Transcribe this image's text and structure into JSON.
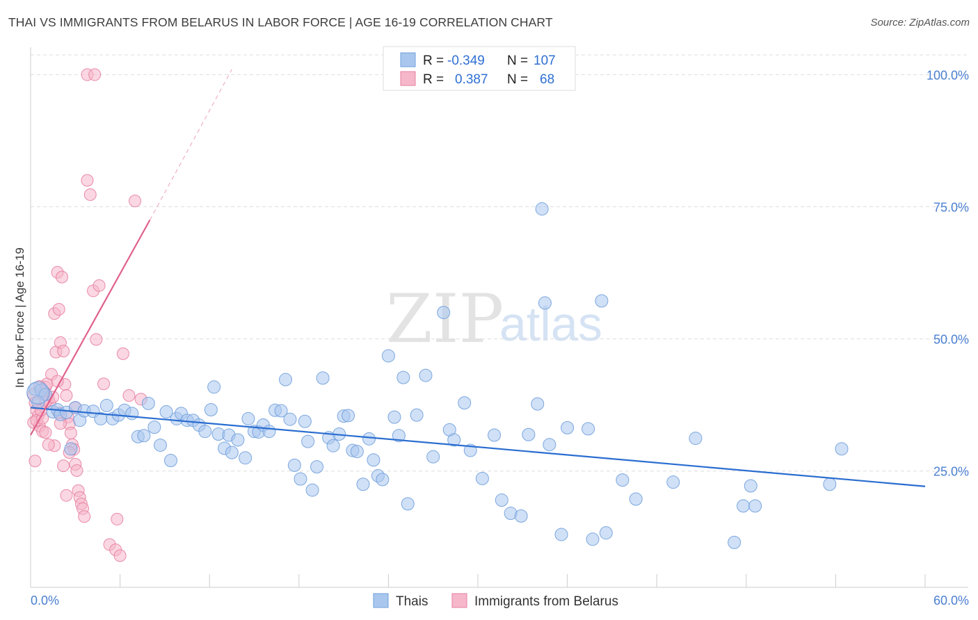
{
  "title": "THAI VS IMMIGRANTS FROM BELARUS IN LABOR FORCE | AGE 16-19 CORRELATION CHART",
  "source": "Source: ZipAtlas.com",
  "watermark": {
    "zip": "ZIP",
    "atlas": "atlas"
  },
  "colors": {
    "thai_fill": "#a9c7ee",
    "thai_stroke": "#6f9fdc",
    "thai_line": "#2a6dd0",
    "bel_fill": "#f6b7cb",
    "bel_stroke": "#e77fa1",
    "bel_line": "#e0608c",
    "axis_label": "#4a7fd0",
    "grid": "#dddddd"
  },
  "legend": {
    "rows": [
      {
        "r_label": "R =",
        "r_value": "-0.349",
        "n_label": "N =",
        "n_value": "107"
      },
      {
        "r_label": "R =",
        "r_value": "0.387",
        "n_label": "N =",
        "n_value": "68"
      }
    ]
  },
  "bottom_legend": [
    "Thais",
    "Immigrants from Belarus"
  ],
  "chart_data": {
    "type": "scatter",
    "title": "THAI VS IMMIGRANTS FROM BELARUS IN LABOR FORCE | AGE 16-19 CORRELATION CHART",
    "xlabel": "",
    "ylabel": "In Labor Force | Age 16-19",
    "xlim": [
      0,
      60
    ],
    "ylim": [
      3,
      104
    ],
    "x_tick_labels": [
      "0.0%",
      "60.0%"
    ],
    "y_ticks": [
      25,
      50,
      75,
      100
    ],
    "y_tick_labels": [
      "25.0%",
      "50.0%",
      "75.0%",
      "100.0%"
    ],
    "grid": true,
    "legend_position": "top-center",
    "series": [
      {
        "name": "Thais",
        "r": -0.349,
        "n": 107,
        "trend": {
          "x": [
            0,
            60
          ],
          "y": [
            37.0,
            22.1
          ]
        },
        "points": [
          [
            0.3,
            40.5
          ],
          [
            0.7,
            40.3
          ],
          [
            1.0,
            39.5
          ],
          [
            0.5,
            38.0
          ],
          [
            1.5,
            36.2
          ],
          [
            1.8,
            36.6
          ],
          [
            2.0,
            35.7
          ],
          [
            2.4,
            36.1
          ],
          [
            2.7,
            29.2
          ],
          [
            3.0,
            37.0
          ],
          [
            3.3,
            34.6
          ],
          [
            3.6,
            36.4
          ],
          [
            4.2,
            36.3
          ],
          [
            4.7,
            34.9
          ],
          [
            5.1,
            37.4
          ],
          [
            5.5,
            34.9
          ],
          [
            5.9,
            35.6
          ],
          [
            6.3,
            36.5
          ],
          [
            6.8,
            35.9
          ],
          [
            7.2,
            31.5
          ],
          [
            7.6,
            31.7
          ],
          [
            7.9,
            37.8
          ],
          [
            8.3,
            33.3
          ],
          [
            8.7,
            29.9
          ],
          [
            9.1,
            36.2
          ],
          [
            9.4,
            27.0
          ],
          [
            9.8,
            34.9
          ],
          [
            10.1,
            35.9
          ],
          [
            10.5,
            34.6
          ],
          [
            10.9,
            34.6
          ],
          [
            11.3,
            33.7
          ],
          [
            11.7,
            32.5
          ],
          [
            12.1,
            36.6
          ],
          [
            12.3,
            40.9
          ],
          [
            12.6,
            32.0
          ],
          [
            13.0,
            29.3
          ],
          [
            13.3,
            31.8
          ],
          [
            13.5,
            28.5
          ],
          [
            13.9,
            30.9
          ],
          [
            14.4,
            27.5
          ],
          [
            14.6,
            34.9
          ],
          [
            15.0,
            32.5
          ],
          [
            15.3,
            32.4
          ],
          [
            15.6,
            33.7
          ],
          [
            16.0,
            32.5
          ],
          [
            16.4,
            36.5
          ],
          [
            16.8,
            36.4
          ],
          [
            17.1,
            42.3
          ],
          [
            17.4,
            34.8
          ],
          [
            17.7,
            26.1
          ],
          [
            18.1,
            23.5
          ],
          [
            18.4,
            34.4
          ],
          [
            18.6,
            30.6
          ],
          [
            18.9,
            21.4
          ],
          [
            19.2,
            25.8
          ],
          [
            19.6,
            42.6
          ],
          [
            20.0,
            31.3
          ],
          [
            20.3,
            29.8
          ],
          [
            20.7,
            32.0
          ],
          [
            21.0,
            35.4
          ],
          [
            21.3,
            35.5
          ],
          [
            21.6,
            28.9
          ],
          [
            21.9,
            28.7
          ],
          [
            22.3,
            22.5
          ],
          [
            22.7,
            31.1
          ],
          [
            23.0,
            27.1
          ],
          [
            23.3,
            24.1
          ],
          [
            23.6,
            23.4
          ],
          [
            24.0,
            46.8
          ],
          [
            24.4,
            35.2
          ],
          [
            24.7,
            31.7
          ],
          [
            25.0,
            42.7
          ],
          [
            25.3,
            18.8
          ],
          [
            25.9,
            35.6
          ],
          [
            26.5,
            43.1
          ],
          [
            27.0,
            27.7
          ],
          [
            27.7,
            55.0
          ],
          [
            28.1,
            32.8
          ],
          [
            28.4,
            30.9
          ],
          [
            29.1,
            37.9
          ],
          [
            29.5,
            28.9
          ],
          [
            30.3,
            23.6
          ],
          [
            31.1,
            31.8
          ],
          [
            31.6,
            19.5
          ],
          [
            32.2,
            17.0
          ],
          [
            32.9,
            16.5
          ],
          [
            33.4,
            31.9
          ],
          [
            34.0,
            37.7
          ],
          [
            34.3,
            74.6
          ],
          [
            34.8,
            30.0
          ],
          [
            34.5,
            56.8
          ],
          [
            35.6,
            13.0
          ],
          [
            36.0,
            33.2
          ],
          [
            37.4,
            33.0
          ],
          [
            37.7,
            12.1
          ],
          [
            38.3,
            57.2
          ],
          [
            38.6,
            13.3
          ],
          [
            39.7,
            23.3
          ],
          [
            40.6,
            19.7
          ],
          [
            43.1,
            22.9
          ],
          [
            44.6,
            31.2
          ],
          [
            47.2,
            11.5
          ],
          [
            47.8,
            18.4
          ],
          [
            48.3,
            22.2
          ],
          [
            48.6,
            18.4
          ],
          [
            53.6,
            22.5
          ],
          [
            54.4,
            29.2
          ]
        ]
      },
      {
        "name": "Immigrants from Belarus",
        "r": 0.387,
        "n": 68,
        "trend": {
          "x": [
            0,
            8.0
          ],
          "y": [
            31.8,
            72.5
          ]
        },
        "trend_extension": {
          "x": [
            8.0,
            13.5
          ],
          "y": [
            72.5,
            101.0
          ]
        },
        "points": [
          [
            0.2,
            39.5
          ],
          [
            0.3,
            37.9
          ],
          [
            0.4,
            36.5
          ],
          [
            0.5,
            35.4
          ],
          [
            0.2,
            34.2
          ],
          [
            0.6,
            33.5
          ],
          [
            0.8,
            32.5
          ],
          [
            0.3,
            26.9
          ],
          [
            1.0,
            40.9
          ],
          [
            1.1,
            41.5
          ],
          [
            0.9,
            40.0
          ],
          [
            1.2,
            38.6
          ],
          [
            1.3,
            37.8
          ],
          [
            1.4,
            43.3
          ],
          [
            1.6,
            54.8
          ],
          [
            1.7,
            47.5
          ],
          [
            1.8,
            62.6
          ],
          [
            1.9,
            55.6
          ],
          [
            2.0,
            49.3
          ],
          [
            2.1,
            61.7
          ],
          [
            2.2,
            47.7
          ],
          [
            2.3,
            41.4
          ],
          [
            2.4,
            39.3
          ],
          [
            2.5,
            35.2
          ],
          [
            2.6,
            33.9
          ],
          [
            2.7,
            32.2
          ],
          [
            2.8,
            30.0
          ],
          [
            2.9,
            29.1
          ],
          [
            3.0,
            26.3
          ],
          [
            3.1,
            25.1
          ],
          [
            3.2,
            21.3
          ],
          [
            3.3,
            20.0
          ],
          [
            3.4,
            18.8
          ],
          [
            3.5,
            17.9
          ],
          [
            3.6,
            16.4
          ],
          [
            3.8,
            80.0
          ],
          [
            4.0,
            77.3
          ],
          [
            4.2,
            59.1
          ],
          [
            4.4,
            49.9
          ],
          [
            4.6,
            60.1
          ],
          [
            4.9,
            41.5
          ],
          [
            5.3,
            11.1
          ],
          [
            5.7,
            10.1
          ],
          [
            6.0,
            9.0
          ],
          [
            5.8,
            15.9
          ],
          [
            6.2,
            47.2
          ],
          [
            6.6,
            39.3
          ],
          [
            7.0,
            76.1
          ],
          [
            7.4,
            38.6
          ],
          [
            3.8,
            100.0
          ],
          [
            4.3,
            100.0
          ],
          [
            0.9,
            39.5
          ],
          [
            1.0,
            38.1
          ],
          [
            0.4,
            34.6
          ],
          [
            1.6,
            29.8
          ],
          [
            2.2,
            26.0
          ],
          [
            2.4,
            20.4
          ],
          [
            1.0,
            32.3
          ],
          [
            0.6,
            41.0
          ],
          [
            1.8,
            42.0
          ],
          [
            1.5,
            39.0
          ],
          [
            0.8,
            35.0
          ],
          [
            1.9,
            36.0
          ],
          [
            2.6,
            28.5
          ],
          [
            1.2,
            30.0
          ],
          [
            0.7,
            36.5
          ],
          [
            2.0,
            34.0
          ],
          [
            3.0,
            37.0
          ]
        ]
      }
    ]
  }
}
